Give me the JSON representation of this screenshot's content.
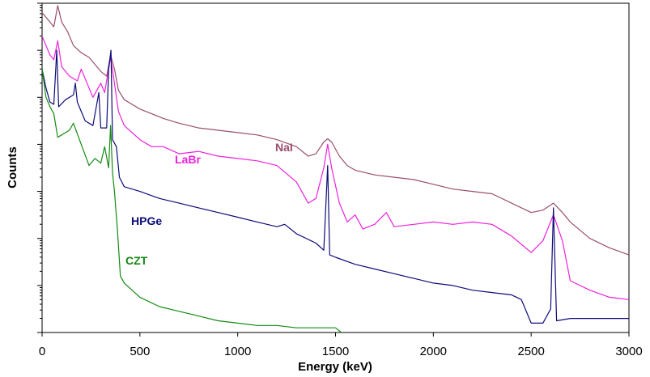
{
  "chart_data": {
    "type": "line",
    "title": "",
    "xlabel": "Energy (keV)",
    "ylabel": "Counts",
    "xlim": [
      0,
      3000
    ],
    "yscale": "log",
    "ylim_decades": [
      0,
      7
    ],
    "x_ticks": [
      0,
      500,
      1000,
      1500,
      2000,
      2500,
      3000
    ],
    "grid": false,
    "legend": "inline labels",
    "series": [
      {
        "name": "NaI",
        "color": "#9a4e6e",
        "points": [
          [
            0,
            6.8
          ],
          [
            20,
            6.7
          ],
          [
            40,
            6.6
          ],
          [
            60,
            6.5
          ],
          [
            80,
            6.95
          ],
          [
            100,
            6.6
          ],
          [
            130,
            6.4
          ],
          [
            160,
            6.1
          ],
          [
            200,
            5.95
          ],
          [
            240,
            5.85
          ],
          [
            280,
            5.65
          ],
          [
            300,
            5.55
          ],
          [
            330,
            5.45
          ],
          [
            350,
            5.9
          ],
          [
            370,
            5.6
          ],
          [
            390,
            5.15
          ],
          [
            420,
            4.95
          ],
          [
            460,
            4.85
          ],
          [
            500,
            4.75
          ],
          [
            560,
            4.65
          ],
          [
            620,
            4.55
          ],
          [
            700,
            4.45
          ],
          [
            800,
            4.35
          ],
          [
            900,
            4.3
          ],
          [
            1000,
            4.25
          ],
          [
            1100,
            4.2
          ],
          [
            1200,
            4.1
          ],
          [
            1300,
            3.95
          ],
          [
            1360,
            3.75
          ],
          [
            1400,
            3.8
          ],
          [
            1440,
            4.05
          ],
          [
            1460,
            4.12
          ],
          [
            1480,
            4.05
          ],
          [
            1520,
            3.75
          ],
          [
            1560,
            3.55
          ],
          [
            1600,
            3.45
          ],
          [
            1700,
            3.35
          ],
          [
            1800,
            3.3
          ],
          [
            1900,
            3.25
          ],
          [
            2000,
            3.15
          ],
          [
            2100,
            3.05
          ],
          [
            2200,
            3.0
          ],
          [
            2300,
            2.95
          ],
          [
            2400,
            2.75
          ],
          [
            2500,
            2.55
          ],
          [
            2560,
            2.6
          ],
          [
            2614,
            2.75
          ],
          [
            2660,
            2.55
          ],
          [
            2700,
            2.35
          ],
          [
            2800,
            2.0
          ],
          [
            2900,
            1.8
          ],
          [
            3000,
            1.65
          ]
        ]
      },
      {
        "name": "LaBr",
        "color": "#ee22dd",
        "points": [
          [
            0,
            6.3
          ],
          [
            20,
            6.1
          ],
          [
            40,
            5.9
          ],
          [
            60,
            5.8
          ],
          [
            80,
            6.2
          ],
          [
            100,
            5.65
          ],
          [
            140,
            5.45
          ],
          [
            180,
            5.35
          ],
          [
            200,
            5.6
          ],
          [
            230,
            5.3
          ],
          [
            260,
            5.0
          ],
          [
            280,
            5.15
          ],
          [
            300,
            5.3
          ],
          [
            320,
            5.1
          ],
          [
            350,
            5.85
          ],
          [
            370,
            5.3
          ],
          [
            390,
            4.7
          ],
          [
            420,
            4.4
          ],
          [
            460,
            4.25
          ],
          [
            500,
            4.1
          ],
          [
            560,
            3.95
          ],
          [
            620,
            3.95
          ],
          [
            700,
            3.8
          ],
          [
            800,
            3.85
          ],
          [
            900,
            3.75
          ],
          [
            1000,
            3.7
          ],
          [
            1100,
            3.65
          ],
          [
            1200,
            3.55
          ],
          [
            1300,
            3.2
          ],
          [
            1360,
            2.75
          ],
          [
            1400,
            2.85
          ],
          [
            1440,
            3.5
          ],
          [
            1460,
            4.0
          ],
          [
            1480,
            3.5
          ],
          [
            1520,
            2.75
          ],
          [
            1560,
            2.35
          ],
          [
            1600,
            2.5
          ],
          [
            1640,
            2.2
          ],
          [
            1700,
            2.3
          ],
          [
            1760,
            2.55
          ],
          [
            1800,
            2.25
          ],
          [
            1900,
            2.3
          ],
          [
            2000,
            2.35
          ],
          [
            2100,
            2.3
          ],
          [
            2200,
            2.35
          ],
          [
            2300,
            2.3
          ],
          [
            2400,
            2.05
          ],
          [
            2500,
            1.7
          ],
          [
            2560,
            1.95
          ],
          [
            2614,
            2.5
          ],
          [
            2660,
            1.95
          ],
          [
            2700,
            1.1
          ],
          [
            2800,
            0.9
          ],
          [
            2900,
            0.75
          ],
          [
            3000,
            0.7
          ]
        ]
      },
      {
        "name": "HPGe",
        "color": "#0c0c78",
        "points": [
          [
            0,
            5.6
          ],
          [
            20,
            5.2
          ],
          [
            40,
            4.9
          ],
          [
            60,
            4.85
          ],
          [
            75,
            6.0
          ],
          [
            85,
            4.8
          ],
          [
            120,
            4.95
          ],
          [
            160,
            5.05
          ],
          [
            170,
            5.3
          ],
          [
            180,
            4.9
          ],
          [
            220,
            4.5
          ],
          [
            260,
            4.4
          ],
          [
            290,
            5.1
          ],
          [
            300,
            4.35
          ],
          [
            330,
            4.35
          ],
          [
            340,
            5.6
          ],
          [
            352,
            6.0
          ],
          [
            360,
            4.1
          ],
          [
            380,
            3.95
          ],
          [
            395,
            3.3
          ],
          [
            420,
            3.1
          ],
          [
            500,
            3.0
          ],
          [
            600,
            2.85
          ],
          [
            700,
            2.75
          ],
          [
            800,
            2.65
          ],
          [
            900,
            2.55
          ],
          [
            1000,
            2.45
          ],
          [
            1100,
            2.35
          ],
          [
            1200,
            2.25
          ],
          [
            1240,
            2.3
          ],
          [
            1300,
            2.1
          ],
          [
            1400,
            1.9
          ],
          [
            1440,
            1.75
          ],
          [
            1460,
            3.55
          ],
          [
            1470,
            1.65
          ],
          [
            1500,
            1.6
          ],
          [
            1600,
            1.45
          ],
          [
            1700,
            1.35
          ],
          [
            1800,
            1.25
          ],
          [
            1900,
            1.15
          ],
          [
            2000,
            1.05
          ],
          [
            2100,
            1.0
          ],
          [
            2200,
            0.9
          ],
          [
            2300,
            0.85
          ],
          [
            2400,
            0.8
          ],
          [
            2450,
            0.7
          ],
          [
            2500,
            0.2
          ],
          [
            2560,
            0.2
          ],
          [
            2600,
            0.5
          ],
          [
            2614,
            2.65
          ],
          [
            2630,
            0.25
          ],
          [
            2700,
            0.3
          ],
          [
            2800,
            0.3
          ],
          [
            2900,
            0.3
          ],
          [
            3000,
            0.3
          ]
        ]
      },
      {
        "name": "CZT",
        "color": "#138a13",
        "points": [
          [
            0,
            5.6
          ],
          [
            20,
            5.0
          ],
          [
            40,
            4.8
          ],
          [
            60,
            4.65
          ],
          [
            80,
            4.15
          ],
          [
            100,
            4.2
          ],
          [
            140,
            4.3
          ],
          [
            160,
            4.45
          ],
          [
            200,
            4.0
          ],
          [
            240,
            3.55
          ],
          [
            270,
            3.7
          ],
          [
            300,
            3.6
          ],
          [
            320,
            3.95
          ],
          [
            340,
            3.5
          ],
          [
            350,
            4.4
          ],
          [
            360,
            3.4
          ],
          [
            370,
            3.0
          ],
          [
            385,
            2.2
          ],
          [
            400,
            1.2
          ],
          [
            420,
            1.05
          ],
          [
            500,
            0.75
          ],
          [
            600,
            0.55
          ],
          [
            700,
            0.45
          ],
          [
            800,
            0.35
          ],
          [
            900,
            0.25
          ],
          [
            1000,
            0.2
          ],
          [
            1100,
            0.15
          ],
          [
            1200,
            0.15
          ],
          [
            1300,
            0.1
          ],
          [
            1400,
            0.1
          ],
          [
            1500,
            0.1
          ],
          [
            1530,
            0.0
          ]
        ]
      }
    ]
  }
}
